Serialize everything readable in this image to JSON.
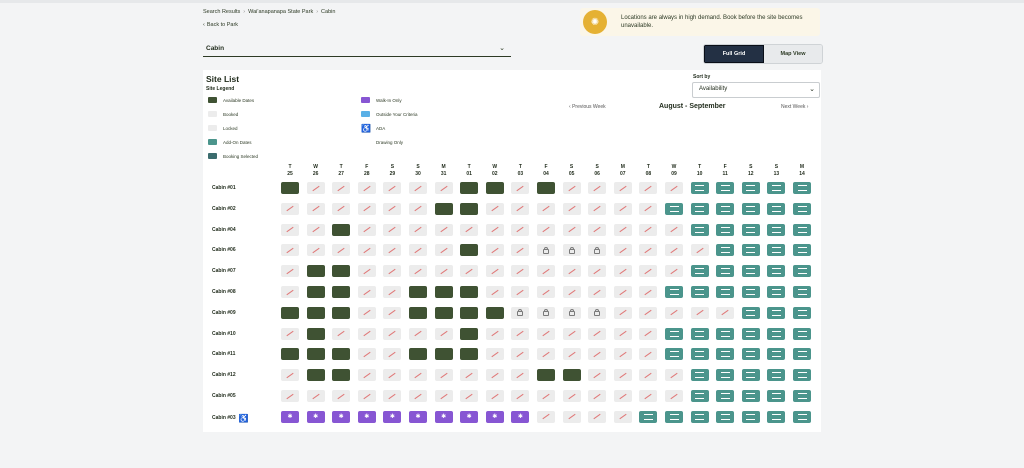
{
  "breadcrumb": [
    "Search Results",
    "Wai'anapanapa State Park",
    "Cabin"
  ],
  "back_label": "Back to Park",
  "alert_text": "Locations are always in high demand. Book before the site becomes unavailable.",
  "facility_select": "Cabin",
  "view_toggle": [
    "Full Grid",
    "Map View"
  ],
  "site_list_title": "Site List",
  "legend_title": "Site Legend",
  "legend": [
    {
      "key": "available",
      "label": "Available Dates"
    },
    {
      "key": "booked",
      "label": "Booked"
    },
    {
      "key": "locked",
      "label": "Locked"
    },
    {
      "key": "addon",
      "label": "Add-On Dates"
    },
    {
      "key": "selected",
      "label": "Booking Selected"
    },
    {
      "key": "walkin",
      "label": "Walk-In Only"
    },
    {
      "key": "outside",
      "label": "Outside Your Criteria"
    },
    {
      "key": "ada",
      "label": "ADA"
    },
    {
      "key": "drawing",
      "label": "Drawing Only"
    }
  ],
  "sort": {
    "label": "Sort by",
    "value": "Availability"
  },
  "nav": {
    "prev": "Previous Week",
    "month": "August - September",
    "next": "Next Week"
  },
  "days": [
    [
      "T",
      "25"
    ],
    [
      "W",
      "26"
    ],
    [
      "T",
      "27"
    ],
    [
      "F",
      "28"
    ],
    [
      "S",
      "29"
    ],
    [
      "S",
      "30"
    ],
    [
      "M",
      "31"
    ],
    [
      "T",
      "01"
    ],
    [
      "W",
      "02"
    ],
    [
      "T",
      "03"
    ],
    [
      "F",
      "04"
    ],
    [
      "S",
      "05"
    ],
    [
      "S",
      "06"
    ],
    [
      "M",
      "07"
    ],
    [
      "T",
      "08"
    ],
    [
      "W",
      "09"
    ],
    [
      "T",
      "10"
    ],
    [
      "F",
      "11"
    ],
    [
      "S",
      "12"
    ],
    [
      "S",
      "13"
    ],
    [
      "M",
      "14"
    ]
  ],
  "rows": [
    {
      "name": "Cabin #01",
      "ada": false,
      "cells": "ABBBBBBAABABBBBBDDDDD"
    },
    {
      "name": "Cabin #02",
      "ada": false,
      "cells": "BBBBBBAABBBBBBBDDDDDD"
    },
    {
      "name": "Cabin #04",
      "ada": false,
      "cells": "BBABBBBBBBBBBBBBDDDDD"
    },
    {
      "name": "Cabin #06",
      "ada": false,
      "cells": "BBBBBBBABBLLLBBBBDDDD"
    },
    {
      "name": "Cabin #07",
      "ada": false,
      "cells": "BAABBBBBBBBBBBBBDDDDD"
    },
    {
      "name": "Cabin #08",
      "ada": false,
      "cells": "BAABBAAABBBBBBBDDDDDD"
    },
    {
      "name": "Cabin #09",
      "ada": false,
      "cells": "AAABBAAAALLLLBBBBBDDD"
    },
    {
      "name": "Cabin #10",
      "ada": false,
      "cells": "BABBBBBABBBBBBBDDDDDD"
    },
    {
      "name": "Cabin #11",
      "ada": false,
      "cells": "AAABBAAABBBBBBBDDDDDD"
    },
    {
      "name": "Cabin #12",
      "ada": false,
      "cells": "BAABBBBBBBAABBBBDDDDD"
    },
    {
      "name": "Cabin #05",
      "ada": false,
      "cells": "BBBBBBBBBBBBBBBBDDDDD"
    },
    {
      "name": "Cabin #03",
      "ada": true,
      "cells": "WWWWWWWWWWBBBBDDDDDDD"
    }
  ],
  "colors": {
    "available": "#3f5233",
    "addon": "#4b958c",
    "walkin": "#8756d3",
    "booked": "#ececec",
    "selected": "#3b6c6e",
    "outside": "#5ab0e6"
  }
}
